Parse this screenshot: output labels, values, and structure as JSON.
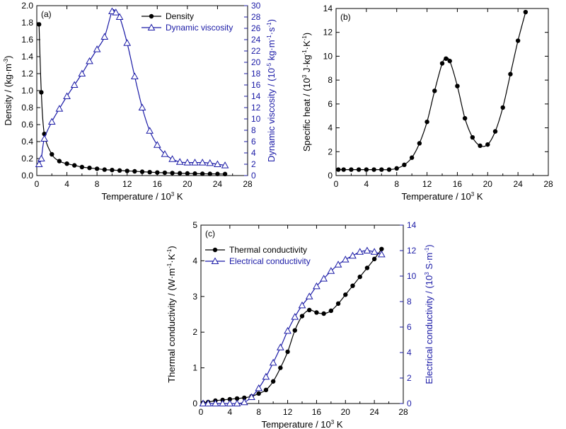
{
  "chart_data": [
    {
      "type": "line",
      "panel": "(a)",
      "xlabel": "Temperature / 10^3 K",
      "ylabel": "Density / (kg·m^-3)",
      "ylabel_right": "Dynamic viscosity / (10^-5 kg·m^-1·s^-1)",
      "xlim": [
        0,
        28
      ],
      "xticks": [
        0,
        4,
        8,
        12,
        16,
        20,
        24,
        28
      ],
      "ylim": [
        0,
        2.0
      ],
      "yticks": [
        0.0,
        0.2,
        0.4,
        0.6,
        0.8,
        1.0,
        1.2,
        1.4,
        1.6,
        1.8,
        2.0
      ],
      "ylim_right": [
        0,
        30
      ],
      "yticks_right": [
        0,
        2,
        4,
        6,
        8,
        10,
        12,
        14,
        16,
        18,
        20,
        22,
        24,
        26,
        28,
        30
      ],
      "legend_position": "top-right",
      "series": [
        {
          "name": "Density",
          "axis": "left",
          "marker": "filled-circle",
          "color": "#000000",
          "x": [
            0.3,
            0.6,
            1,
            2,
            3,
            4,
            5,
            6,
            7,
            8,
            9,
            10,
            11,
            12,
            13,
            14,
            15,
            16,
            17,
            18,
            19,
            20,
            21,
            22,
            23,
            24,
            25
          ],
          "y": [
            1.78,
            0.98,
            0.49,
            0.25,
            0.17,
            0.14,
            0.12,
            0.1,
            0.09,
            0.08,
            0.07,
            0.065,
            0.06,
            0.055,
            0.05,
            0.045,
            0.04,
            0.036,
            0.033,
            0.03,
            0.027,
            0.025,
            0.023,
            0.021,
            0.02,
            0.019,
            0.018
          ]
        },
        {
          "name": "Dynamic viscosity",
          "axis": "right",
          "marker": "open-triangle",
          "color": "#1a1aa6",
          "x": [
            0.3,
            0.6,
            1,
            2,
            3,
            4,
            5,
            6,
            7,
            8,
            9,
            10,
            10.5,
            11,
            12,
            13,
            14,
            15,
            16,
            17,
            18,
            19,
            20,
            21,
            22,
            23,
            24,
            25
          ],
          "y": [
            2.0,
            3.0,
            6.5,
            9.5,
            11.8,
            14.0,
            16.0,
            18.0,
            20.2,
            22.3,
            24.5,
            29.0,
            28.8,
            28.0,
            23.4,
            17.5,
            12.0,
            7.9,
            5.4,
            3.8,
            2.9,
            2.4,
            2.3,
            2.3,
            2.3,
            2.2,
            2.0,
            1.8
          ]
        }
      ]
    },
    {
      "type": "line",
      "panel": "(b)",
      "xlabel": "Temperature / 10^3 K",
      "ylabel": "Specific heat / (10^3 J·kg^-1·K^-1)",
      "xlim": [
        0,
        28
      ],
      "xticks": [
        0,
        4,
        8,
        12,
        16,
        20,
        24,
        28
      ],
      "ylim": [
        0,
        14
      ],
      "yticks": [
        0,
        2,
        4,
        6,
        8,
        10,
        12,
        14
      ],
      "series": [
        {
          "name": "",
          "marker": "filled-circle",
          "color": "#000000",
          "x": [
            0.3,
            1,
            2,
            3,
            4,
            5,
            6,
            7,
            8,
            9,
            10,
            11,
            12,
            13,
            14,
            14.5,
            15,
            16,
            17,
            18,
            19,
            20,
            21,
            22,
            23,
            24,
            25
          ],
          "y": [
            0.5,
            0.5,
            0.5,
            0.5,
            0.5,
            0.5,
            0.5,
            0.5,
            0.6,
            0.9,
            1.5,
            2.7,
            4.5,
            7.1,
            9.4,
            9.8,
            9.6,
            7.5,
            4.8,
            3.2,
            2.5,
            2.6,
            3.7,
            5.7,
            8.5,
            11.3,
            13.7
          ]
        }
      ]
    },
    {
      "type": "line",
      "panel": "(c)",
      "xlabel": "Temperature / 10^3 K",
      "ylabel": "Thermal conductivity / (W·m^-1·K^-1)",
      "ylabel_right": "Electrical conductivity / (10^3 S·m^-1)",
      "xlim": [
        0,
        28
      ],
      "xticks": [
        0,
        4,
        8,
        12,
        16,
        20,
        24,
        28
      ],
      "ylim": [
        0,
        5
      ],
      "yticks": [
        0,
        1,
        2,
        3,
        4,
        5
      ],
      "ylim_right": [
        0,
        14
      ],
      "yticks_right": [
        0,
        2,
        4,
        6,
        8,
        10,
        12,
        14
      ],
      "legend_position": "top-left",
      "series": [
        {
          "name": "Thermal conductivity",
          "axis": "left",
          "marker": "filled-circle",
          "color": "#000000",
          "x": [
            0.3,
            1,
            2,
            3,
            4,
            5,
            6,
            7,
            8,
            9,
            10,
            11,
            12,
            13,
            14,
            15,
            16,
            17,
            18,
            19,
            20,
            21,
            22,
            23,
            24,
            25
          ],
          "y": [
            0.02,
            0.04,
            0.08,
            0.1,
            0.12,
            0.14,
            0.16,
            0.2,
            0.28,
            0.38,
            0.62,
            1.0,
            1.45,
            2.05,
            2.45,
            2.62,
            2.55,
            2.52,
            2.6,
            2.8,
            3.05,
            3.3,
            3.55,
            3.8,
            4.05,
            4.33
          ]
        },
        {
          "name": "Electrical conductivity",
          "axis": "right",
          "marker": "open-triangle",
          "color": "#1a1aa6",
          "x": [
            0.3,
            1,
            2,
            3,
            4,
            5,
            6,
            7,
            8,
            9,
            10,
            11,
            12,
            13,
            14,
            15,
            16,
            17,
            18,
            19,
            20,
            21,
            22,
            23,
            24,
            25
          ],
          "y": [
            0,
            0,
            0,
            0,
            0,
            0,
            0.1,
            0.5,
            1.2,
            2.1,
            3.2,
            4.4,
            5.7,
            6.8,
            7.7,
            8.4,
            9.2,
            9.8,
            10.4,
            10.9,
            11.3,
            11.6,
            11.9,
            12.0,
            11.9,
            11.7
          ]
        }
      ]
    }
  ]
}
